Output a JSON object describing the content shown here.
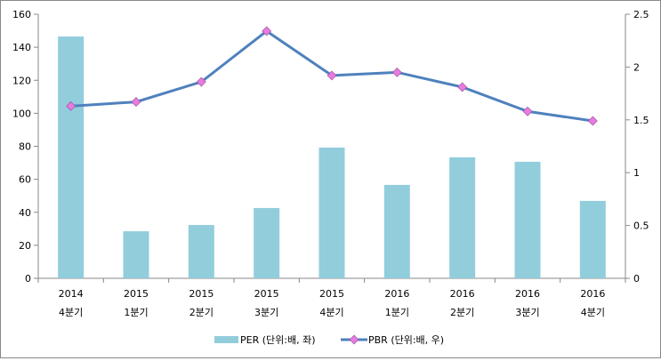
{
  "chart_data": {
    "type": "bar+line",
    "categories": [
      [
        "2014",
        "4분기"
      ],
      [
        "2015",
        "1분기"
      ],
      [
        "2015",
        "2분기"
      ],
      [
        "2015",
        "3분기"
      ],
      [
        "2015",
        "4분기"
      ],
      [
        "2016",
        "1분기"
      ],
      [
        "2016",
        "2분기"
      ],
      [
        "2016",
        "3분기"
      ],
      [
        "2016",
        "4분기"
      ]
    ],
    "series": [
      {
        "name": "PER (단위:배, 좌)",
        "type": "bar",
        "axis": "left",
        "color": "#92CDDC",
        "values": [
          146.5,
          28.5,
          32.3,
          42.6,
          79.2,
          56.6,
          73.3,
          70.6,
          46.9
        ]
      },
      {
        "name": "PBR (단위:배, 우)",
        "type": "line",
        "axis": "right",
        "color": "#4F81BD",
        "marker_color": "#E67BE0",
        "values": [
          1.63,
          1.67,
          1.86,
          2.34,
          1.92,
          1.95,
          1.81,
          1.58,
          1.49
        ]
      }
    ],
    "y_left": {
      "min": 0,
      "max": 160,
      "ticks": [
        "0",
        "20",
        "40",
        "60",
        "80",
        "100",
        "120",
        "140",
        "160"
      ]
    },
    "y_right": {
      "min": 0,
      "max": 2.5,
      "ticks": [
        "0",
        "0.5",
        "1",
        "1.5",
        "2",
        "2.5"
      ]
    },
    "grid": false,
    "legend": "bottom"
  }
}
